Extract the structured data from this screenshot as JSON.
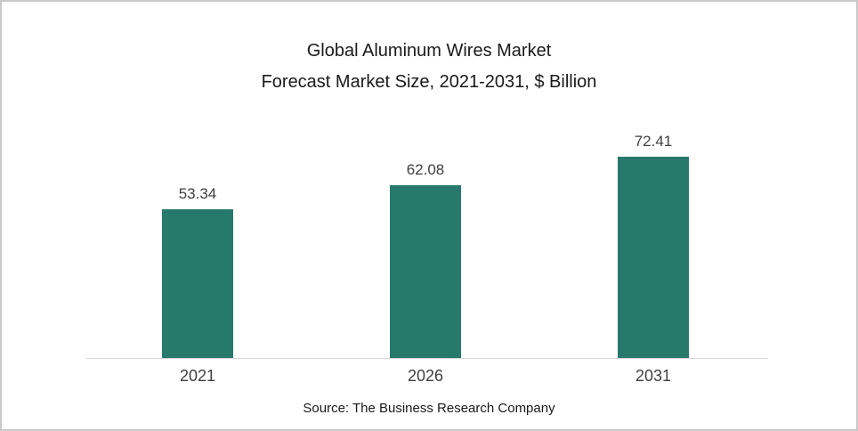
{
  "title": {
    "line1": "Global Aluminum Wires Market",
    "line2": "Forecast Market Size, 2021-2031, $ Billion"
  },
  "source": "Source: The Business Research Company",
  "colors": {
    "bar": "#26796B",
    "label": "#404040",
    "axis": "#d6d6d6"
  },
  "chart_data": {
    "type": "bar",
    "categories": [
      "2021",
      "2026",
      "2031"
    ],
    "values": [
      53.34,
      62.08,
      72.41
    ],
    "value_labels": [
      "53.34",
      "62.08",
      "72.41"
    ],
    "title": "Global Aluminum Wires Market Forecast Market Size, 2021-2031, $ Billion",
    "xlabel": "",
    "ylabel": "",
    "ylim": [
      0,
      80
    ],
    "grid": false,
    "legend": false,
    "bar_color": "#26796B",
    "source": "Source: The Business Research Company"
  }
}
